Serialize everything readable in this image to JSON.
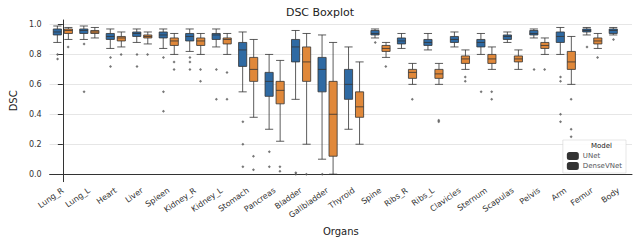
{
  "chart_data": {
    "type": "boxplot",
    "title": "DSC Boxplot",
    "x_label": "Organs",
    "y_label": "DSC",
    "legend_title": "Model",
    "legend": "lower right",
    "grid": true,
    "ylim": [
      -0.05,
      1.03
    ],
    "yticks": [
      {
        "value": 0,
        "label": "0.0"
      },
      0.2,
      0.4,
      0.6,
      0.8,
      {
        "value": 1,
        "label": "1.0"
      }
    ],
    "categories": [
      "Lung_R",
      "Lung_L",
      "Heart",
      "Liver",
      "Spleen",
      "Kidney_R",
      "Kidney_L",
      "Stomach",
      "Pancreas",
      "Bladder",
      "Gallbladder",
      "Thyroid",
      "Spine",
      "Ribs_R",
      "Ribs_L",
      "Clavicles",
      "Sternum",
      "Scapulas",
      "Pelvis",
      "Arm",
      "Femur",
      "Body"
    ],
    "series": [
      {
        "name": "UNet",
        "color": "#2f6aa3",
        "values": [
          [
            0.88,
            0.93,
            0.95,
            0.97,
            0.99
          ],
          [
            0.9,
            0.94,
            0.96,
            0.97,
            0.99
          ],
          [
            0.84,
            0.9,
            0.92,
            0.94,
            0.97
          ],
          [
            0.88,
            0.92,
            0.94,
            0.95,
            0.97
          ],
          [
            0.84,
            0.91,
            0.93,
            0.95,
            0.97
          ],
          [
            0.82,
            0.89,
            0.92,
            0.94,
            0.97
          ],
          [
            0.85,
            0.9,
            0.93,
            0.94,
            0.97
          ],
          [
            0.55,
            0.72,
            0.83,
            0.88,
            0.95
          ],
          [
            0.3,
            0.52,
            0.62,
            0.68,
            0.8
          ],
          [
            0.5,
            0.75,
            0.85,
            0.9,
            0.96
          ],
          [
            0.1,
            0.55,
            0.7,
            0.78,
            0.93
          ],
          [
            0.3,
            0.5,
            0.6,
            0.7,
            0.85
          ],
          [
            0.91,
            0.93,
            0.94,
            0.96,
            0.97
          ],
          [
            0.84,
            0.87,
            0.89,
            0.91,
            0.94
          ],
          [
            0.83,
            0.86,
            0.88,
            0.9,
            0.94
          ],
          [
            0.85,
            0.88,
            0.9,
            0.92,
            0.95
          ],
          [
            0.8,
            0.85,
            0.88,
            0.9,
            0.94
          ],
          [
            0.88,
            0.9,
            0.92,
            0.93,
            0.95
          ],
          [
            0.91,
            0.93,
            0.94,
            0.96,
            0.97
          ],
          [
            0.8,
            0.88,
            0.92,
            0.95,
            0.98
          ],
          [
            0.93,
            0.95,
            0.96,
            0.97,
            0.98
          ],
          [
            0.93,
            0.94,
            0.96,
            0.97,
            0.98
          ]
        ],
        "outliers": [
          [
            0.77,
            0.8
          ],
          [
            0.55,
            0.87
          ],
          [
            0.72,
            0.78
          ],
          [
            0.72,
            0.8
          ],
          [
            0.42,
            0.55,
            0.78
          ],
          [
            0.7,
            0.75,
            0.78
          ],
          [
            0.5,
            0.7
          ],
          [
            0.05,
            0.2,
            0.35
          ],
          [
            0.05,
            0.15
          ],
          [
            0.0,
            0.01
          ],
          [
            0.0
          ],
          [],
          [
            0.88
          ],
          [],
          [],
          [],
          [
            0.55
          ],
          [],
          [
            0.7
          ],
          [
            0.35,
            0.4,
            0.62,
            0.65
          ],
          [
            0.85
          ],
          [
            0.9
          ]
        ]
      },
      {
        "name": "DenseVNet",
        "color": "#e0883a",
        "values": [
          [
            0.9,
            0.94,
            0.96,
            0.97,
            0.98
          ],
          [
            0.91,
            0.94,
            0.95,
            0.96,
            0.98
          ],
          [
            0.85,
            0.89,
            0.91,
            0.92,
            0.95
          ],
          [
            0.87,
            0.91,
            0.92,
            0.93,
            0.95
          ],
          [
            0.8,
            0.86,
            0.89,
            0.91,
            0.94
          ],
          [
            0.8,
            0.86,
            0.89,
            0.91,
            0.94
          ],
          [
            0.8,
            0.87,
            0.9,
            0.91,
            0.94
          ],
          [
            0.38,
            0.62,
            0.7,
            0.78,
            0.9
          ],
          [
            0.22,
            0.47,
            0.56,
            0.62,
            0.76
          ],
          [
            0.2,
            0.62,
            0.75,
            0.85,
            0.94
          ],
          [
            0.0,
            0.12,
            0.4,
            0.62,
            0.88
          ],
          [
            0.2,
            0.38,
            0.45,
            0.55,
            0.75
          ],
          [
            0.78,
            0.82,
            0.84,
            0.86,
            0.88
          ],
          [
            0.6,
            0.64,
            0.68,
            0.7,
            0.74
          ],
          [
            0.6,
            0.64,
            0.67,
            0.7,
            0.74
          ],
          [
            0.7,
            0.74,
            0.77,
            0.79,
            0.83
          ],
          [
            0.7,
            0.74,
            0.77,
            0.8,
            0.85
          ],
          [
            0.7,
            0.75,
            0.77,
            0.79,
            0.83
          ],
          [
            0.8,
            0.84,
            0.86,
            0.88,
            0.91
          ],
          [
            0.6,
            0.7,
            0.75,
            0.82,
            0.92
          ],
          [
            0.84,
            0.87,
            0.89,
            0.91,
            0.94
          ],
          null
        ],
        "outliers": [
          [
            0.85
          ],
          [],
          [
            0.8
          ],
          [
            0.8
          ],
          [
            0.7,
            0.75
          ],
          [
            0.62,
            0.7
          ],
          [
            0.5,
            0.68
          ],
          [
            0.03,
            0.12
          ],
          [
            0.02,
            0.05
          ],
          [
            0.0
          ],
          [],
          [],
          [
            0.72
          ],
          [
            0.5
          ],
          [
            0.35,
            0.36
          ],
          [
            0.62,
            0.65
          ],
          [
            0.5,
            0.55
          ],
          [],
          [
            0.7
          ],
          [
            0.25,
            0.3,
            0.5
          ],
          [
            0.78
          ],
          []
        ]
      }
    ]
  }
}
